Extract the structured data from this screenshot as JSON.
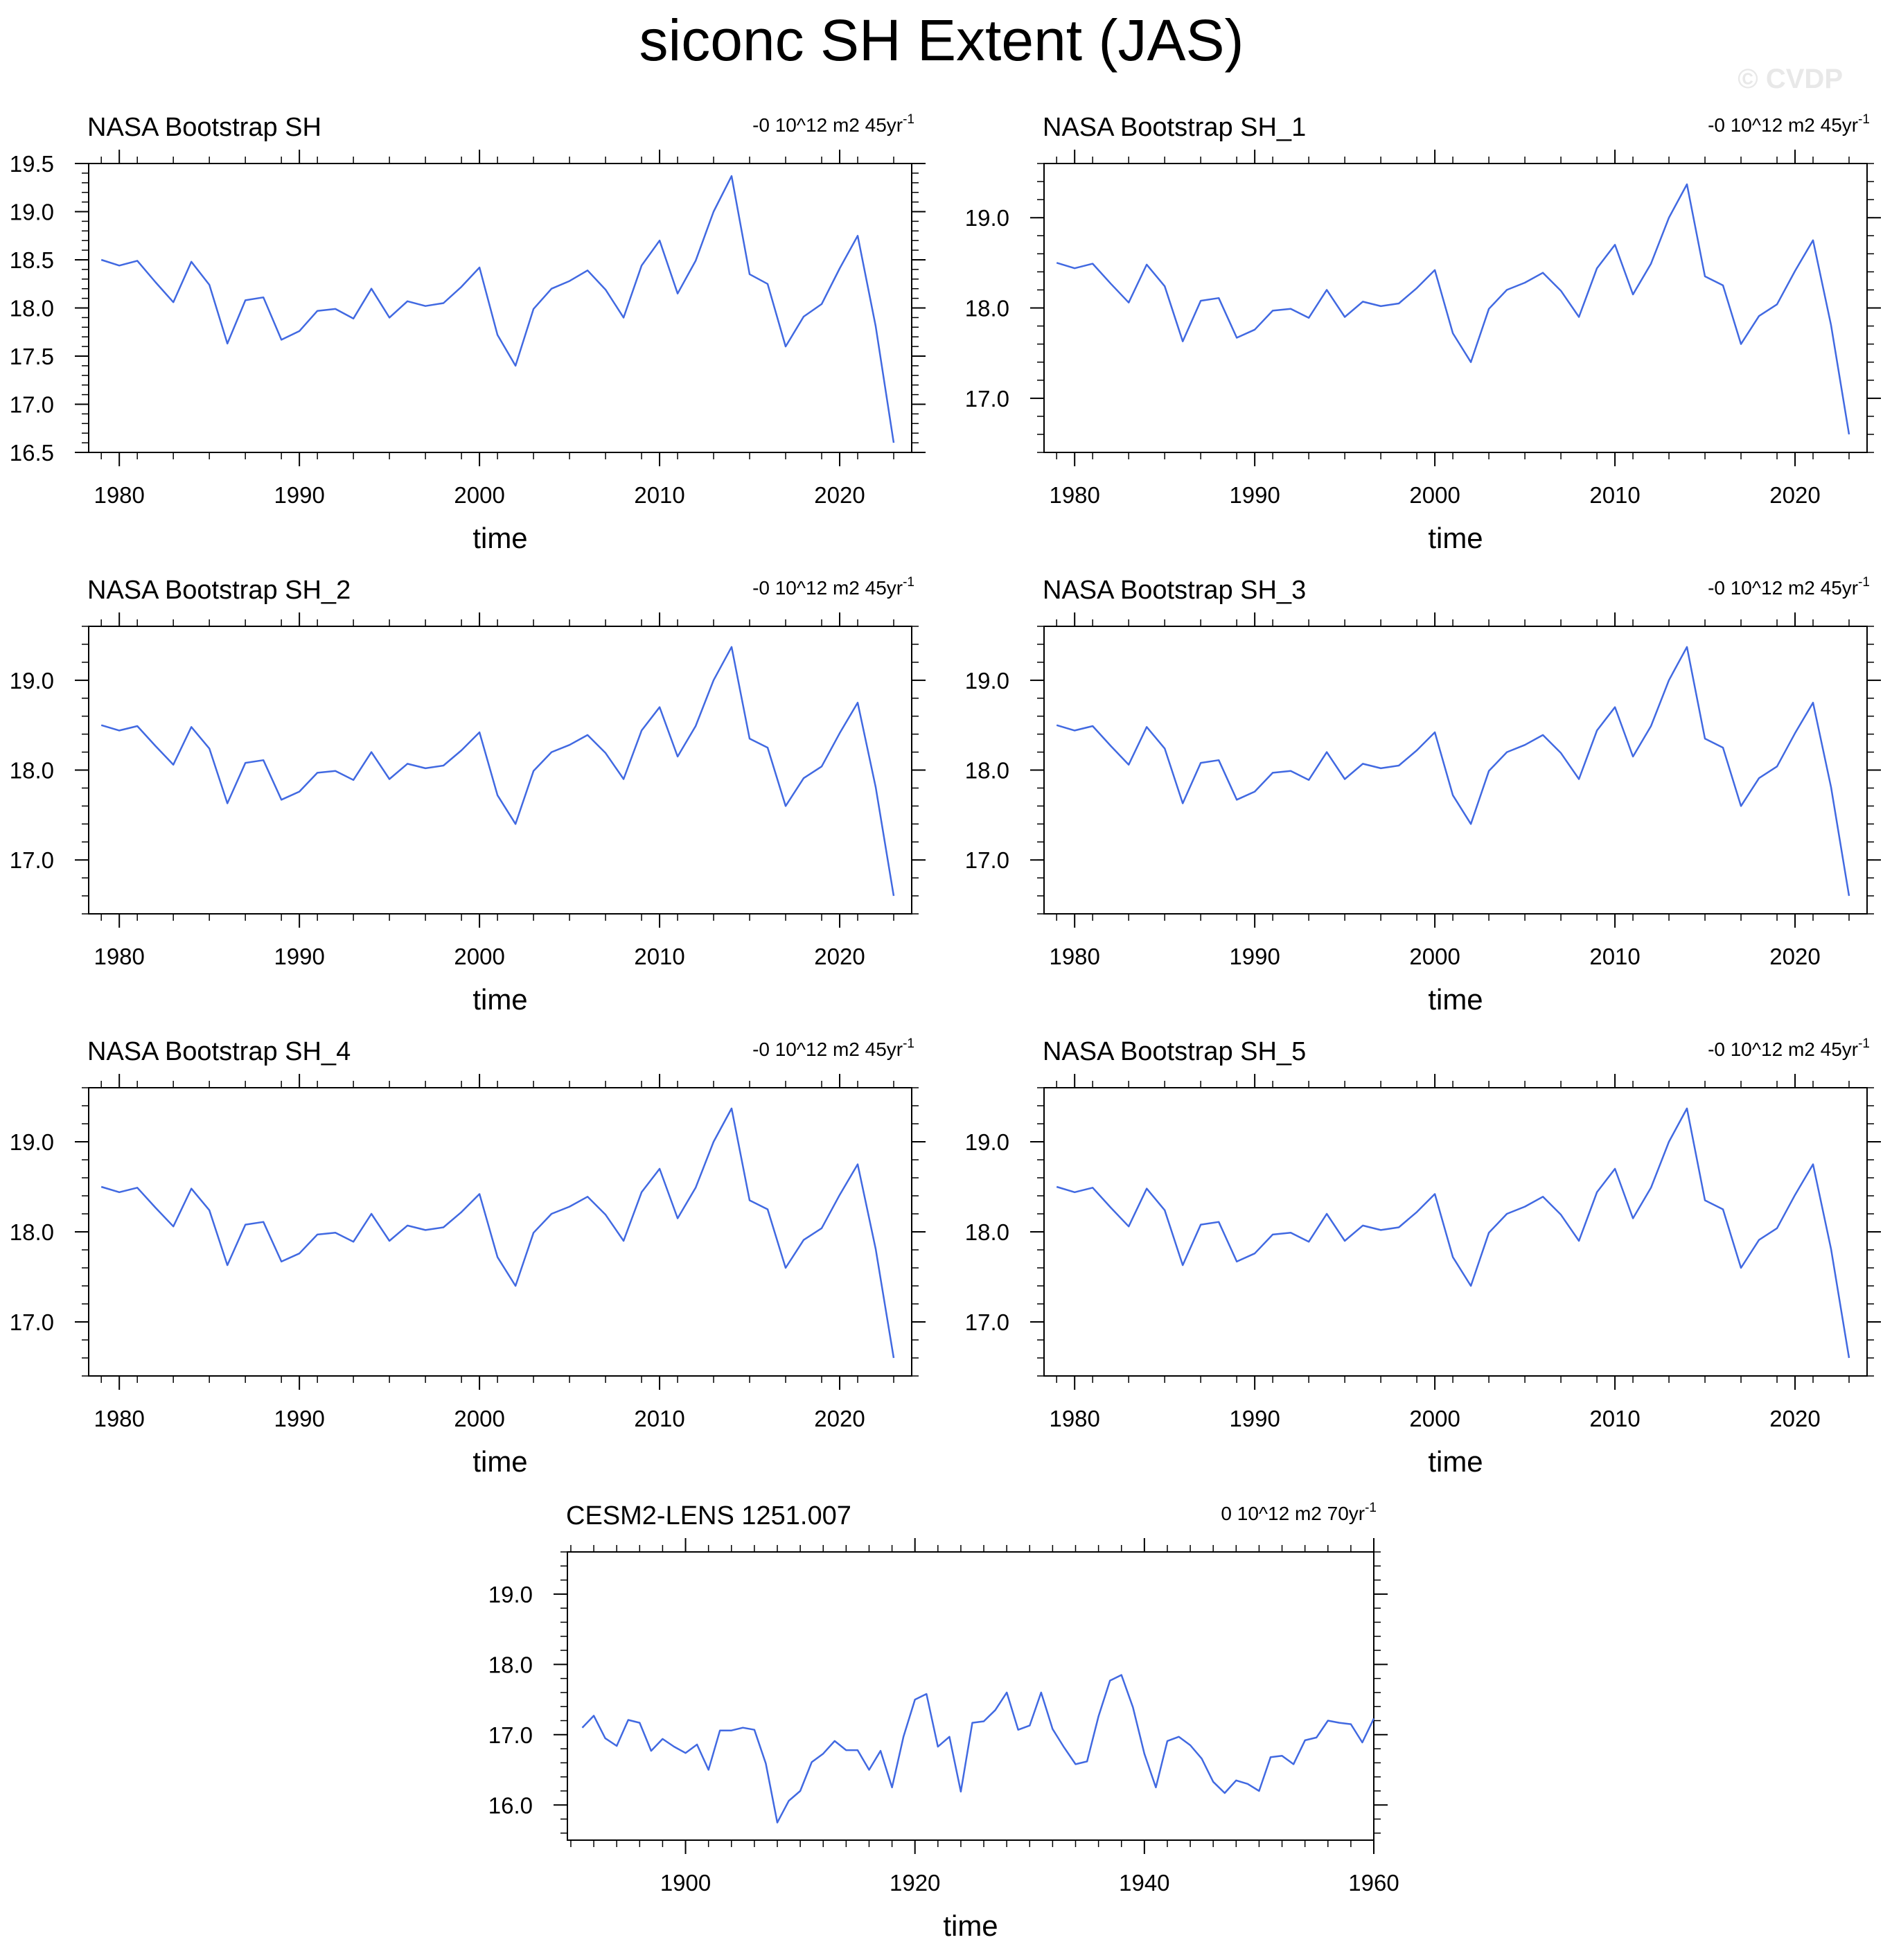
{
  "title": "siconc SH Extent (JAS)",
  "watermark": "© CVDP",
  "colors": {
    "line": "#4169e1",
    "axis": "#000000",
    "background": "#ffffff"
  },
  "chart_data": [
    {
      "type": "line",
      "title": "NASA Bootstrap SH",
      "trend_label": "-0 10^12 m2 45yr",
      "trend_sup": "-1",
      "xlabel": "time",
      "ylabel": "",
      "xlim": [
        1978.3,
        2024.0
      ],
      "ylim": [
        16.5,
        19.5
      ],
      "x_ticks": [
        1980,
        1990,
        2000,
        2010,
        2020
      ],
      "y_ticks": [
        "16.5",
        "17.0",
        "17.5",
        "18.0",
        "18.5",
        "19.0",
        "19.5"
      ],
      "grid": false,
      "x": [
        1979,
        1980,
        1981,
        1982,
        1983,
        1984,
        1985,
        1986,
        1987,
        1988,
        1989,
        1990,
        1991,
        1992,
        1993,
        1994,
        1995,
        1996,
        1997,
        1998,
        1999,
        2000,
        2001,
        2002,
        2003,
        2004,
        2005,
        2006,
        2007,
        2008,
        2009,
        2010,
        2011,
        2012,
        2013,
        2014,
        2015,
        2016,
        2017,
        2018,
        2019,
        2020,
        2021,
        2022,
        2023
      ],
      "values": [
        18.5,
        18.44,
        18.49,
        18.27,
        18.06,
        18.48,
        18.24,
        17.63,
        18.08,
        18.11,
        17.67,
        17.76,
        17.97,
        17.99,
        17.89,
        18.2,
        17.9,
        18.07,
        18.02,
        18.05,
        18.22,
        18.42,
        17.72,
        17.4,
        17.99,
        18.2,
        18.28,
        18.39,
        18.19,
        17.9,
        18.44,
        18.7,
        18.15,
        18.49,
        19.0,
        19.37,
        18.35,
        18.25,
        17.6,
        17.91,
        18.04,
        18.41,
        18.75,
        17.81,
        16.6
      ]
    },
    {
      "type": "line",
      "title": "NASA Bootstrap SH_1",
      "trend_label": "-0 10^12 m2 45yr",
      "trend_sup": "-1",
      "xlabel": "time",
      "ylabel": "",
      "xlim": [
        1978.3,
        2024.0
      ],
      "ylim": [
        16.4,
        19.6
      ],
      "x_ticks": [
        1980,
        1990,
        2000,
        2010,
        2020
      ],
      "y_ticks": [
        "17.0",
        "18.0",
        "19.0"
      ],
      "grid": false,
      "x": [
        1979,
        1980,
        1981,
        1982,
        1983,
        1984,
        1985,
        1986,
        1987,
        1988,
        1989,
        1990,
        1991,
        1992,
        1993,
        1994,
        1995,
        1996,
        1997,
        1998,
        1999,
        2000,
        2001,
        2002,
        2003,
        2004,
        2005,
        2006,
        2007,
        2008,
        2009,
        2010,
        2011,
        2012,
        2013,
        2014,
        2015,
        2016,
        2017,
        2018,
        2019,
        2020,
        2021,
        2022,
        2023
      ],
      "values": [
        18.5,
        18.44,
        18.49,
        18.27,
        18.06,
        18.48,
        18.24,
        17.63,
        18.08,
        18.11,
        17.67,
        17.76,
        17.97,
        17.99,
        17.89,
        18.2,
        17.9,
        18.07,
        18.02,
        18.05,
        18.22,
        18.42,
        17.72,
        17.4,
        17.99,
        18.2,
        18.28,
        18.39,
        18.19,
        17.9,
        18.44,
        18.7,
        18.15,
        18.49,
        19.0,
        19.37,
        18.35,
        18.25,
        17.6,
        17.91,
        18.04,
        18.41,
        18.75,
        17.81,
        16.6
      ]
    },
    {
      "type": "line",
      "title": "NASA Bootstrap SH_2",
      "trend_label": "-0 10^12 m2 45yr",
      "trend_sup": "-1",
      "xlabel": "time",
      "ylabel": "",
      "xlim": [
        1978.3,
        2024.0
      ],
      "ylim": [
        16.4,
        19.6
      ],
      "x_ticks": [
        1980,
        1990,
        2000,
        2010,
        2020
      ],
      "y_ticks": [
        "17.0",
        "18.0",
        "19.0"
      ],
      "grid": false,
      "x": [
        1979,
        1980,
        1981,
        1982,
        1983,
        1984,
        1985,
        1986,
        1987,
        1988,
        1989,
        1990,
        1991,
        1992,
        1993,
        1994,
        1995,
        1996,
        1997,
        1998,
        1999,
        2000,
        2001,
        2002,
        2003,
        2004,
        2005,
        2006,
        2007,
        2008,
        2009,
        2010,
        2011,
        2012,
        2013,
        2014,
        2015,
        2016,
        2017,
        2018,
        2019,
        2020,
        2021,
        2022,
        2023
      ],
      "values": [
        18.5,
        18.44,
        18.49,
        18.27,
        18.06,
        18.48,
        18.24,
        17.63,
        18.08,
        18.11,
        17.67,
        17.76,
        17.97,
        17.99,
        17.89,
        18.2,
        17.9,
        18.07,
        18.02,
        18.05,
        18.22,
        18.42,
        17.72,
        17.4,
        17.99,
        18.2,
        18.28,
        18.39,
        18.19,
        17.9,
        18.44,
        18.7,
        18.15,
        18.49,
        19.0,
        19.37,
        18.35,
        18.25,
        17.6,
        17.91,
        18.04,
        18.41,
        18.75,
        17.81,
        16.6
      ]
    },
    {
      "type": "line",
      "title": "NASA Bootstrap SH_3",
      "trend_label": "-0 10^12 m2 45yr",
      "trend_sup": "-1",
      "xlabel": "time",
      "ylabel": "",
      "xlim": [
        1978.3,
        2024.0
      ],
      "ylim": [
        16.4,
        19.6
      ],
      "x_ticks": [
        1980,
        1990,
        2000,
        2010,
        2020
      ],
      "y_ticks": [
        "17.0",
        "18.0",
        "19.0"
      ],
      "grid": false,
      "x": [
        1979,
        1980,
        1981,
        1982,
        1983,
        1984,
        1985,
        1986,
        1987,
        1988,
        1989,
        1990,
        1991,
        1992,
        1993,
        1994,
        1995,
        1996,
        1997,
        1998,
        1999,
        2000,
        2001,
        2002,
        2003,
        2004,
        2005,
        2006,
        2007,
        2008,
        2009,
        2010,
        2011,
        2012,
        2013,
        2014,
        2015,
        2016,
        2017,
        2018,
        2019,
        2020,
        2021,
        2022,
        2023
      ],
      "values": [
        18.5,
        18.44,
        18.49,
        18.27,
        18.06,
        18.48,
        18.24,
        17.63,
        18.08,
        18.11,
        17.67,
        17.76,
        17.97,
        17.99,
        17.89,
        18.2,
        17.9,
        18.07,
        18.02,
        18.05,
        18.22,
        18.42,
        17.72,
        17.4,
        17.99,
        18.2,
        18.28,
        18.39,
        18.19,
        17.9,
        18.44,
        18.7,
        18.15,
        18.49,
        19.0,
        19.37,
        18.35,
        18.25,
        17.6,
        17.91,
        18.04,
        18.41,
        18.75,
        17.81,
        16.6
      ]
    },
    {
      "type": "line",
      "title": "NASA Bootstrap SH_4",
      "trend_label": "-0 10^12 m2 45yr",
      "trend_sup": "-1",
      "xlabel": "time",
      "ylabel": "",
      "xlim": [
        1978.3,
        2024.0
      ],
      "ylim": [
        16.4,
        19.6
      ],
      "x_ticks": [
        1980,
        1990,
        2000,
        2010,
        2020
      ],
      "y_ticks": [
        "17.0",
        "18.0",
        "19.0"
      ],
      "grid": false,
      "x": [
        1979,
        1980,
        1981,
        1982,
        1983,
        1984,
        1985,
        1986,
        1987,
        1988,
        1989,
        1990,
        1991,
        1992,
        1993,
        1994,
        1995,
        1996,
        1997,
        1998,
        1999,
        2000,
        2001,
        2002,
        2003,
        2004,
        2005,
        2006,
        2007,
        2008,
        2009,
        2010,
        2011,
        2012,
        2013,
        2014,
        2015,
        2016,
        2017,
        2018,
        2019,
        2020,
        2021,
        2022,
        2023
      ],
      "values": [
        18.5,
        18.44,
        18.49,
        18.27,
        18.06,
        18.48,
        18.24,
        17.63,
        18.08,
        18.11,
        17.67,
        17.76,
        17.97,
        17.99,
        17.89,
        18.2,
        17.9,
        18.07,
        18.02,
        18.05,
        18.22,
        18.42,
        17.72,
        17.4,
        17.99,
        18.2,
        18.28,
        18.39,
        18.19,
        17.9,
        18.44,
        18.7,
        18.15,
        18.49,
        19.0,
        19.37,
        18.35,
        18.25,
        17.6,
        17.91,
        18.04,
        18.41,
        18.75,
        17.81,
        16.6
      ]
    },
    {
      "type": "line",
      "title": "NASA Bootstrap SH_5",
      "trend_label": "-0 10^12 m2 45yr",
      "trend_sup": "-1",
      "xlabel": "time",
      "ylabel": "",
      "xlim": [
        1978.3,
        2024.0
      ],
      "ylim": [
        16.4,
        19.6
      ],
      "x_ticks": [
        1980,
        1990,
        2000,
        2010,
        2020
      ],
      "y_ticks": [
        "17.0",
        "18.0",
        "19.0"
      ],
      "grid": false,
      "x": [
        1979,
        1980,
        1981,
        1982,
        1983,
        1984,
        1985,
        1986,
        1987,
        1988,
        1989,
        1990,
        1991,
        1992,
        1993,
        1994,
        1995,
        1996,
        1997,
        1998,
        1999,
        2000,
        2001,
        2002,
        2003,
        2004,
        2005,
        2006,
        2007,
        2008,
        2009,
        2010,
        2011,
        2012,
        2013,
        2014,
        2015,
        2016,
        2017,
        2018,
        2019,
        2020,
        2021,
        2022,
        2023
      ],
      "values": [
        18.5,
        18.44,
        18.49,
        18.27,
        18.06,
        18.48,
        18.24,
        17.63,
        18.08,
        18.11,
        17.67,
        17.76,
        17.97,
        17.99,
        17.89,
        18.2,
        17.9,
        18.07,
        18.02,
        18.05,
        18.22,
        18.42,
        17.72,
        17.4,
        17.99,
        18.2,
        18.28,
        18.39,
        18.19,
        17.9,
        18.44,
        18.7,
        18.15,
        18.49,
        19.0,
        19.37,
        18.35,
        18.25,
        17.6,
        17.91,
        18.04,
        18.41,
        18.75,
        17.81,
        16.6
      ]
    },
    {
      "type": "line",
      "title": "CESM2-LENS 1251.007",
      "trend_label": "0 10^12 m2 70yr",
      "trend_sup": "-1",
      "xlabel": "time",
      "ylabel": "",
      "xlim": [
        1889.7,
        1960.0
      ],
      "ylim": [
        15.5,
        19.6
      ],
      "x_ticks": [
        1900,
        1920,
        1940,
        1960
      ],
      "y_ticks": [
        "16.0",
        "17.0",
        "18.0",
        "19.0"
      ],
      "grid": false,
      "x": [
        1891,
        1892,
        1893,
        1894,
        1895,
        1896,
        1897,
        1898,
        1899,
        1900,
        1901,
        1902,
        1903,
        1904,
        1905,
        1906,
        1907,
        1908,
        1909,
        1910,
        1911,
        1912,
        1913,
        1914,
        1915,
        1916,
        1917,
        1918,
        1919,
        1920,
        1921,
        1922,
        1923,
        1924,
        1925,
        1926,
        1927,
        1928,
        1929,
        1930,
        1931,
        1932,
        1933,
        1934,
        1935,
        1936,
        1937,
        1938,
        1939,
        1940,
        1941,
        1942,
        1943,
        1944,
        1945,
        1946,
        1947,
        1948,
        1949,
        1950,
        1951,
        1952,
        1953,
        1954,
        1955,
        1956,
        1957,
        1958,
        1959,
        1960
      ],
      "values": [
        17.1,
        17.27,
        16.95,
        16.84,
        17.21,
        17.17,
        16.77,
        16.94,
        16.83,
        16.74,
        16.86,
        16.5,
        17.06,
        17.06,
        17.1,
        17.07,
        16.59,
        15.75,
        16.06,
        16.2,
        16.61,
        16.73,
        16.91,
        16.78,
        16.78,
        16.5,
        16.77,
        16.25,
        16.97,
        17.5,
        17.58,
        16.83,
        16.97,
        16.19,
        17.17,
        17.19,
        17.35,
        17.6,
        17.07,
        17.13,
        17.6,
        17.08,
        16.82,
        16.58,
        16.62,
        17.26,
        17.77,
        17.85,
        17.39,
        16.73,
        16.25,
        16.91,
        16.97,
        16.85,
        16.66,
        16.33,
        16.17,
        16.35,
        16.3,
        16.2,
        16.68,
        16.7,
        16.58,
        16.92,
        16.96,
        17.2,
        17.17,
        17.15,
        16.89,
        17.23
      ]
    }
  ]
}
